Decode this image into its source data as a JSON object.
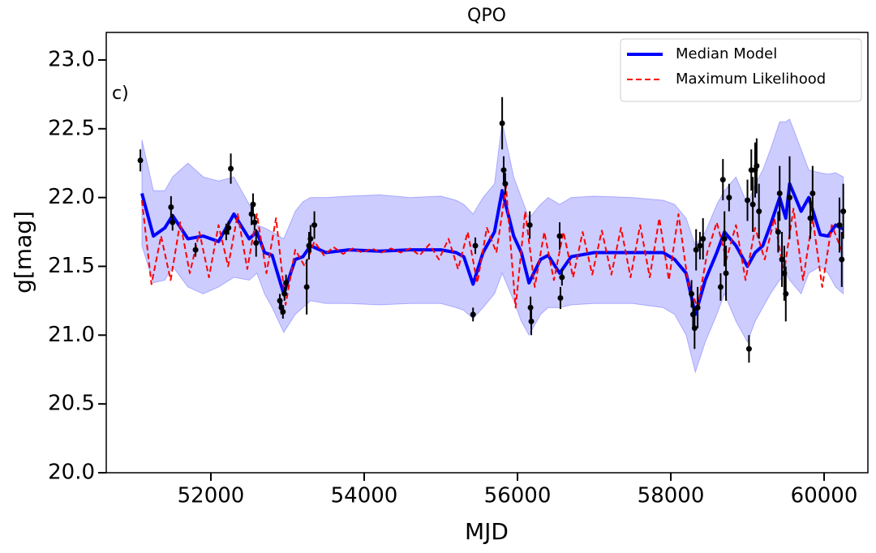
{
  "chart_data": {
    "type": "line",
    "title": "QPO",
    "xlabel": "MJD",
    "ylabel": "g[mag]",
    "annotation": "c)",
    "xlim": [
      50635,
      60571
    ],
    "ylim": [
      20.0,
      23.2
    ],
    "xticks": [
      52000,
      54000,
      56000,
      58000,
      60000
    ],
    "yticks": [
      {
        "value": 20,
        "label": "20.0"
      },
      20.5,
      {
        "value": 21,
        "label": "21.0"
      },
      21.5,
      {
        "value": 22,
        "label": "22.0"
      },
      22.5,
      {
        "value": 23,
        "label": "23.0"
      }
    ],
    "legend": "upper right",
    "series": [
      {
        "name": "Median Model",
        "color": "#0000ff",
        "dash": "solid",
        "x": [
          51100,
          51250,
          51400,
          51500,
          51700,
          51900,
          52100,
          52300,
          52500,
          52600,
          52700,
          52800,
          52950,
          53100,
          53200,
          53300,
          53500,
          53800,
          54200,
          54600,
          55000,
          55200,
          55300,
          55420,
          55550,
          55700,
          55800,
          55950,
          56050,
          56150,
          56300,
          56400,
          56550,
          56700,
          57000,
          57500,
          57900,
          58050,
          58200,
          58320,
          58450,
          58600,
          58700,
          58850,
          59000,
          59100,
          59200,
          59300,
          59420,
          59500,
          59550,
          59700,
          59800,
          59950,
          60050,
          60150,
          60250
        ],
        "values": [
          22.03,
          21.72,
          21.78,
          21.87,
          21.7,
          21.72,
          21.68,
          21.88,
          21.7,
          21.75,
          21.6,
          21.58,
          21.3,
          21.55,
          21.57,
          21.65,
          21.6,
          21.62,
          21.61,
          21.62,
          21.62,
          21.6,
          21.57,
          21.37,
          21.6,
          21.75,
          22.05,
          21.72,
          21.6,
          21.38,
          21.55,
          21.58,
          21.45,
          21.57,
          21.6,
          21.6,
          21.6,
          21.55,
          21.45,
          21.15,
          21.4,
          21.6,
          21.75,
          21.65,
          21.5,
          21.6,
          21.65,
          21.8,
          22.0,
          21.85,
          22.1,
          21.9,
          22.0,
          21.73,
          21.72,
          21.8,
          21.77
        ]
      },
      {
        "name": "Maximum Likelihood",
        "color": "#ff0000",
        "dash": "dashed",
        "x": [
          51100,
          51225,
          51350,
          51475,
          51600,
          51725,
          51850,
          51975,
          52100,
          52225,
          52350,
          52475,
          52600,
          52725,
          52850,
          52975,
          53100,
          53225,
          53350,
          53475,
          53600,
          53725,
          53850,
          53975,
          54100,
          54225,
          54350,
          54475,
          54600,
          54725,
          54850,
          54975,
          55100,
          55225,
          55350,
          55475,
          55600,
          55725,
          55850,
          55975,
          56100,
          56225,
          56350,
          56475,
          56600,
          56725,
          56850,
          56975,
          57100,
          57225,
          57350,
          57475,
          57600,
          57725,
          57850,
          57975,
          58100,
          58225,
          58350,
          58475,
          58600,
          58725,
          58850,
          58975,
          59100,
          59225,
          59350,
          59475,
          59600,
          59725,
          59850,
          59975,
          60100,
          60225
        ],
        "values": [
          21.98,
          21.37,
          21.72,
          21.4,
          21.82,
          21.45,
          21.75,
          21.42,
          21.8,
          21.5,
          21.88,
          21.48,
          21.88,
          21.45,
          21.85,
          21.22,
          21.62,
          21.5,
          21.68,
          21.58,
          21.64,
          21.59,
          21.63,
          21.6,
          21.63,
          21.6,
          21.63,
          21.6,
          21.63,
          21.58,
          21.66,
          21.55,
          21.7,
          21.48,
          21.75,
          21.38,
          21.78,
          21.6,
          22.08,
          21.2,
          21.9,
          21.35,
          21.75,
          21.4,
          21.75,
          21.42,
          21.75,
          21.44,
          21.76,
          21.44,
          21.78,
          21.42,
          21.8,
          21.42,
          21.85,
          21.4,
          21.88,
          21.38,
          21.2,
          21.6,
          21.82,
          21.55,
          21.8,
          21.4,
          21.78,
          21.55,
          21.85,
          21.45,
          21.92,
          21.4,
          21.85,
          21.35,
          21.8,
          21.62
        ]
      }
    ],
    "band": {
      "color": "#0000ff",
      "x": [
        51100,
        51250,
        51400,
        51500,
        51700,
        51900,
        52100,
        52300,
        52500,
        52600,
        52700,
        52800,
        52950,
        53100,
        53200,
        53300,
        53500,
        53800,
        54200,
        54600,
        55000,
        55200,
        55300,
        55420,
        55550,
        55700,
        55800,
        55950,
        56050,
        56150,
        56300,
        56400,
        56550,
        56700,
        57000,
        57500,
        57900,
        58050,
        58200,
        58320,
        58450,
        58600,
        58700,
        58850,
        59000,
        59100,
        59200,
        59300,
        59420,
        59500,
        59550,
        59700,
        59800,
        59950,
        60050,
        60150,
        60250
      ],
      "upper": [
        22.42,
        22.05,
        22.05,
        22.15,
        22.25,
        22.15,
        22.12,
        22.15,
        21.95,
        21.8,
        21.78,
        21.75,
        21.7,
        21.9,
        21.97,
        22.0,
        22.0,
        22.01,
        22.02,
        22.0,
        22.01,
        21.98,
        21.95,
        21.88,
        22.0,
        22.1,
        22.55,
        22.15,
        22.0,
        21.85,
        21.95,
        22.0,
        21.95,
        22.0,
        22.01,
        22.0,
        21.98,
        21.95,
        21.85,
        21.65,
        21.75,
        21.95,
        22.05,
        22.15,
        21.95,
        22.1,
        22.2,
        22.35,
        22.55,
        22.55,
        22.57,
        22.35,
        22.2,
        22.18,
        22.17,
        22.18,
        22.15
      ],
      "lower": [
        21.65,
        21.38,
        21.4,
        21.5,
        21.35,
        21.3,
        21.35,
        21.42,
        21.4,
        21.45,
        21.3,
        21.2,
        21.02,
        21.15,
        21.2,
        21.25,
        21.23,
        21.23,
        21.22,
        21.23,
        21.23,
        21.2,
        21.18,
        21.12,
        21.2,
        21.3,
        21.45,
        21.25,
        21.1,
        21.0,
        21.15,
        21.2,
        21.2,
        21.22,
        21.23,
        21.23,
        21.2,
        21.15,
        21.0,
        20.73,
        20.95,
        21.15,
        21.3,
        21.1,
        20.95,
        21.1,
        21.2,
        21.3,
        21.4,
        21.45,
        21.4,
        21.3,
        21.45,
        21.5,
        21.45,
        21.35,
        21.3
      ]
    },
    "observations": {
      "color": "#000000",
      "x": [
        51080,
        51480,
        51500,
        51800,
        52200,
        52230,
        52260,
        52530,
        52550,
        52570,
        52590,
        52900,
        52920,
        52940,
        52960,
        52980,
        53250,
        53280,
        53300,
        53350,
        55420,
        55450,
        55800,
        55820,
        55840,
        56160,
        56170,
        56180,
        56550,
        56560,
        56580,
        58270,
        58290,
        58310,
        58330,
        58350,
        58380,
        58420,
        58650,
        58680,
        58700,
        58720,
        58760,
        59000,
        59020,
        59050,
        59070,
        59100,
        59120,
        59150,
        59400,
        59420,
        59450,
        59480,
        59500,
        59550,
        59820,
        59850,
        60200,
        60230,
        60250
      ],
      "values": [
        22.27,
        21.93,
        21.82,
        21.62,
        21.75,
        21.78,
        22.21,
        21.88,
        21.95,
        21.82,
        21.67,
        21.25,
        21.2,
        21.17,
        21.3,
        21.38,
        21.35,
        21.65,
        21.7,
        21.8,
        21.15,
        21.65,
        22.54,
        22.2,
        22.1,
        21.8,
        21.2,
        21.1,
        21.72,
        21.27,
        21.42,
        21.3,
        21.15,
        21.05,
        21.62,
        21.2,
        21.65,
        21.7,
        21.35,
        22.13,
        21.7,
        21.45,
        22.0,
        21.98,
        20.9,
        22.2,
        21.95,
        22.2,
        22.23,
        21.9,
        21.75,
        22.03,
        21.55,
        21.45,
        21.3,
        22.0,
        21.85,
        22.03,
        21.8,
        21.55,
        21.9
      ],
      "errors": [
        0.08,
        0.08,
        0.06,
        0.05,
        0.06,
        0.05,
        0.11,
        0.08,
        0.08,
        0.06,
        0.1,
        0.05,
        0.05,
        0.05,
        0.05,
        0.06,
        0.2,
        0.1,
        0.1,
        0.1,
        0.05,
        0.06,
        0.19,
        0.1,
        0.08,
        0.1,
        0.08,
        0.1,
        0.1,
        0.08,
        0.06,
        0.1,
        0.1,
        0.15,
        0.15,
        0.15,
        0.1,
        0.15,
        0.1,
        0.15,
        0.2,
        0.2,
        0.1,
        0.15,
        0.1,
        0.15,
        0.2,
        0.2,
        0.2,
        0.2,
        0.15,
        0.2,
        0.2,
        0.2,
        0.2,
        0.3,
        0.15,
        0.2,
        0.2,
        0.2,
        0.2
      ]
    }
  }
}
